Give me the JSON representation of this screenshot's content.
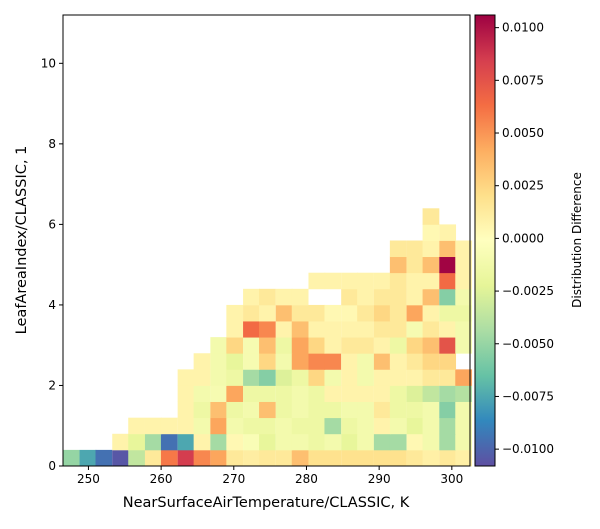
{
  "chart_data": {
    "type": "heatmap",
    "xlabel": "NearSurfaceAirTemperature/CLASSIC,  K",
    "ylabel": "LeafAreaIndex/CLASSIC,  1",
    "xlim": [
      246.5,
      302.5
    ],
    "ylim": [
      0,
      11.2
    ],
    "xticks": [
      250,
      260,
      270,
      280,
      290,
      300
    ],
    "yticks": [
      0,
      2,
      4,
      6,
      8,
      10
    ],
    "bin_width_x": 2.25,
    "bin_height_y": 0.4,
    "grid": false,
    "colorbar": {
      "label": "Distribution Difference",
      "range": [
        -0.0108,
        0.0106
      ],
      "ticks": [
        0.01,
        0.0075,
        0.005,
        0.0025,
        0.0,
        -0.0025,
        -0.005,
        -0.0075,
        -0.01
      ],
      "tick_labels": [
        "0.0100",
        "0.0075",
        "0.0050",
        "0.0025",
        "0.0000",
        "−0.0025",
        "−0.0050",
        "−0.0075",
        "−0.0100"
      ],
      "colormap": "Spectral_r",
      "position": "right"
    },
    "cells": [
      {
        "x": 247.6,
        "y": 0.2,
        "v": -0.005
      },
      {
        "x": 249.9,
        "y": 0.2,
        "v": -0.0075
      },
      {
        "x": 252.1,
        "y": 0.2,
        "v": -0.0095
      },
      {
        "x": 254.4,
        "y": 0.2,
        "v": -0.0105
      },
      {
        "x": 256.6,
        "y": 0.2,
        "v": -0.0035
      },
      {
        "x": 258.9,
        "y": 0.2,
        "v": 0.0015
      },
      {
        "x": 261.1,
        "y": 0.2,
        "v": 0.006
      },
      {
        "x": 263.4,
        "y": 0.2,
        "v": 0.0085
      },
      {
        "x": 265.6,
        "y": 0.2,
        "v": 0.0055
      },
      {
        "x": 267.9,
        "y": 0.2,
        "v": 0.0045
      },
      {
        "x": 270.1,
        "y": 0.2,
        "v": 0.0015
      },
      {
        "x": 272.4,
        "y": 0.2,
        "v": 0.0012
      },
      {
        "x": 274.6,
        "y": 0.2,
        "v": 0.0015
      },
      {
        "x": 276.9,
        "y": 0.2,
        "v": 0.0015
      },
      {
        "x": 279.1,
        "y": 0.2,
        "v": 0.0035
      },
      {
        "x": 281.4,
        "y": 0.2,
        "v": 0.002
      },
      {
        "x": 283.6,
        "y": 0.2,
        "v": 0.002
      },
      {
        "x": 285.9,
        "y": 0.2,
        "v": 0.002
      },
      {
        "x": 288.1,
        "y": 0.2,
        "v": 0.002
      },
      {
        "x": 290.4,
        "y": 0.2,
        "v": 0.002
      },
      {
        "x": 292.6,
        "y": 0.2,
        "v": 0.002
      },
      {
        "x": 294.9,
        "y": 0.2,
        "v": 0.0015
      },
      {
        "x": 297.1,
        "y": 0.2,
        "v": 0.001
      },
      {
        "x": 299.4,
        "y": 0.2,
        "v": 0.0015
      },
      {
        "x": 301.6,
        "y": 0.2,
        "v": 0.001
      },
      {
        "x": 254.4,
        "y": 0.6,
        "v": 0.0008
      },
      {
        "x": 256.6,
        "y": 0.6,
        "v": -0.002
      },
      {
        "x": 258.9,
        "y": 0.6,
        "v": -0.0045
      },
      {
        "x": 261.1,
        "y": 0.6,
        "v": -0.0095
      },
      {
        "x": 263.4,
        "y": 0.6,
        "v": -0.0075
      },
      {
        "x": 265.6,
        "y": 0.6,
        "v": 0.0008
      },
      {
        "x": 267.9,
        "y": 0.6,
        "v": -0.0045
      },
      {
        "x": 270.1,
        "y": 0.6,
        "v": 0.0005
      },
      {
        "x": 272.4,
        "y": 0.6,
        "v": -0.0005
      },
      {
        "x": 274.6,
        "y": 0.6,
        "v": -0.002
      },
      {
        "x": 276.9,
        "y": 0.6,
        "v": -0.001
      },
      {
        "x": 279.1,
        "y": 0.6,
        "v": -0.001
      },
      {
        "x": 281.4,
        "y": 0.6,
        "v": -0.0015
      },
      {
        "x": 283.6,
        "y": 0.6,
        "v": -0.001
      },
      {
        "x": 285.9,
        "y": 0.6,
        "v": -0.002
      },
      {
        "x": 288.1,
        "y": 0.6,
        "v": -0.001
      },
      {
        "x": 290.4,
        "y": 0.6,
        "v": -0.0045
      },
      {
        "x": 292.6,
        "y": 0.6,
        "v": -0.0045
      },
      {
        "x": 294.9,
        "y": 0.6,
        "v": 0.0005
      },
      {
        "x": 297.1,
        "y": 0.6,
        "v": -0.001
      },
      {
        "x": 299.4,
        "y": 0.6,
        "v": -0.0045
      },
      {
        "x": 301.6,
        "y": 0.6,
        "v": -0.001
      },
      {
        "x": 256.6,
        "y": 1.0,
        "v": 0.0008
      },
      {
        "x": 258.9,
        "y": 1.0,
        "v": 0.0008
      },
      {
        "x": 261.1,
        "y": 1.0,
        "v": 0.0008
      },
      {
        "x": 263.4,
        "y": 1.0,
        "v": 0.0008
      },
      {
        "x": 265.6,
        "y": 1.0,
        "v": -0.001
      },
      {
        "x": 267.9,
        "y": 1.0,
        "v": 0.0045
      },
      {
        "x": 270.1,
        "y": 1.0,
        "v": -0.001
      },
      {
        "x": 272.4,
        "y": 1.0,
        "v": -0.0015
      },
      {
        "x": 274.6,
        "y": 1.0,
        "v": -0.0015
      },
      {
        "x": 276.9,
        "y": 1.0,
        "v": -0.001
      },
      {
        "x": 279.1,
        "y": 1.0,
        "v": -0.0015
      },
      {
        "x": 281.4,
        "y": 1.0,
        "v": -0.0015
      },
      {
        "x": 283.6,
        "y": 1.0,
        "v": -0.0045
      },
      {
        "x": 285.9,
        "y": 1.0,
        "v": -0.0015
      },
      {
        "x": 288.1,
        "y": 1.0,
        "v": -0.001
      },
      {
        "x": 290.4,
        "y": 1.0,
        "v": 0.0008
      },
      {
        "x": 292.6,
        "y": 1.0,
        "v": -0.001
      },
      {
        "x": 294.9,
        "y": 1.0,
        "v": -0.002
      },
      {
        "x": 297.1,
        "y": 1.0,
        "v": -0.001
      },
      {
        "x": 299.4,
        "y": 1.0,
        "v": -0.0045
      },
      {
        "x": 301.6,
        "y": 1.0,
        "v": -0.001
      },
      {
        "x": 263.4,
        "y": 1.4,
        "v": 0.0008
      },
      {
        "x": 265.6,
        "y": 1.4,
        "v": -0.0015
      },
      {
        "x": 267.9,
        "y": 1.4,
        "v": 0.0035
      },
      {
        "x": 270.1,
        "y": 1.4,
        "v": -0.0015
      },
      {
        "x": 272.4,
        "y": 1.4,
        "v": -0.001
      },
      {
        "x": 274.6,
        "y": 1.4,
        "v": 0.0035
      },
      {
        "x": 276.9,
        "y": 1.4,
        "v": -0.0015
      },
      {
        "x": 279.1,
        "y": 1.4,
        "v": -0.001
      },
      {
        "x": 281.4,
        "y": 1.4,
        "v": -0.0015
      },
      {
        "x": 283.6,
        "y": 1.4,
        "v": -0.0015
      },
      {
        "x": 285.9,
        "y": 1.4,
        "v": -0.001
      },
      {
        "x": 288.1,
        "y": 1.4,
        "v": -0.001
      },
      {
        "x": 290.4,
        "y": 1.4,
        "v": 0.0015
      },
      {
        "x": 292.6,
        "y": 1.4,
        "v": -0.0015
      },
      {
        "x": 294.9,
        "y": 1.4,
        "v": -0.0015
      },
      {
        "x": 297.1,
        "y": 1.4,
        "v": -0.001
      },
      {
        "x": 299.4,
        "y": 1.4,
        "v": -0.0055
      },
      {
        "x": 301.6,
        "y": 1.4,
        "v": -0.001
      },
      {
        "x": 263.4,
        "y": 1.8,
        "v": 0.0008
      },
      {
        "x": 265.6,
        "y": 1.8,
        "v": -0.001
      },
      {
        "x": 267.9,
        "y": 1.8,
        "v": -0.0008
      },
      {
        "x": 270.1,
        "y": 1.8,
        "v": 0.0045
      },
      {
        "x": 272.4,
        "y": 1.8,
        "v": -0.0015
      },
      {
        "x": 274.6,
        "y": 1.8,
        "v": -0.0015
      },
      {
        "x": 276.9,
        "y": 1.8,
        "v": -0.0015
      },
      {
        "x": 279.1,
        "y": 1.8,
        "v": -0.001
      },
      {
        "x": 281.4,
        "y": 1.8,
        "v": -0.0015
      },
      {
        "x": 283.6,
        "y": 1.8,
        "v": 0.0008
      },
      {
        "x": 285.9,
        "y": 1.8,
        "v": 0.0008
      },
      {
        "x": 288.1,
        "y": 1.8,
        "v": 0.0008
      },
      {
        "x": 290.4,
        "y": 1.8,
        "v": 0.0008
      },
      {
        "x": 292.6,
        "y": 1.8,
        "v": -0.0015
      },
      {
        "x": 294.9,
        "y": 1.8,
        "v": -0.0025
      },
      {
        "x": 297.1,
        "y": 1.8,
        "v": -0.0035
      },
      {
        "x": 299.4,
        "y": 1.8,
        "v": -0.0045
      },
      {
        "x": 301.6,
        "y": 1.8,
        "v": -0.004
      },
      {
        "x": 263.4,
        "y": 2.2,
        "v": 0.0008
      },
      {
        "x": 265.6,
        "y": 2.2,
        "v": 0.0008
      },
      {
        "x": 267.9,
        "y": 2.2,
        "v": -0.001
      },
      {
        "x": 270.1,
        "y": 2.2,
        "v": -0.0015
      },
      {
        "x": 272.4,
        "y": 2.2,
        "v": -0.0045
      },
      {
        "x": 274.6,
        "y": 2.2,
        "v": -0.0055
      },
      {
        "x": 276.9,
        "y": 2.2,
        "v": -0.0025
      },
      {
        "x": 279.1,
        "y": 2.2,
        "v": -0.0015
      },
      {
        "x": 281.4,
        "y": 2.2,
        "v": 0.0025
      },
      {
        "x": 283.6,
        "y": 2.2,
        "v": -0.001
      },
      {
        "x": 285.9,
        "y": 2.2,
        "v": 0.0008
      },
      {
        "x": 288.1,
        "y": 2.2,
        "v": -0.001
      },
      {
        "x": 290.4,
        "y": 2.2,
        "v": 0.0008
      },
      {
        "x": 292.6,
        "y": 2.2,
        "v": 0.0008
      },
      {
        "x": 294.9,
        "y": 2.2,
        "v": 0.0008
      },
      {
        "x": 297.1,
        "y": 2.2,
        "v": 0.0015
      },
      {
        "x": 299.4,
        "y": 2.2,
        "v": 0.0015
      },
      {
        "x": 301.6,
        "y": 2.2,
        "v": 0.0045
      },
      {
        "x": 265.6,
        "y": 2.6,
        "v": 0.0008
      },
      {
        "x": 267.9,
        "y": 2.6,
        "v": -0.001
      },
      {
        "x": 270.1,
        "y": 2.6,
        "v": -0.002
      },
      {
        "x": 272.4,
        "y": 2.6,
        "v": -0.0008
      },
      {
        "x": 274.6,
        "y": 2.6,
        "v": 0.0025
      },
      {
        "x": 276.9,
        "y": 2.6,
        "v": -0.001
      },
      {
        "x": 279.1,
        "y": 2.6,
        "v": 0.0045
      },
      {
        "x": 281.4,
        "y": 2.6,
        "v": 0.0055
      },
      {
        "x": 283.6,
        "y": 2.6,
        "v": 0.0055
      },
      {
        "x": 285.9,
        "y": 2.6,
        "v": 0.0008
      },
      {
        "x": 288.1,
        "y": 2.6,
        "v": -0.001
      },
      {
        "x": 290.4,
        "y": 2.6,
        "v": 0.0035
      },
      {
        "x": 292.6,
        "y": 2.6,
        "v": 0.0008
      },
      {
        "x": 294.9,
        "y": 2.6,
        "v": 0.0015
      },
      {
        "x": 297.1,
        "y": 2.6,
        "v": 0.0025
      },
      {
        "x": 299.4,
        "y": 2.6,
        "v": 0.0025
      },
      {
        "x": 267.9,
        "y": 3.0,
        "v": -0.001
      },
      {
        "x": 270.1,
        "y": 3.0,
        "v": 0.0025
      },
      {
        "x": 272.4,
        "y": 3.0,
        "v": -0.0008
      },
      {
        "x": 274.6,
        "y": 3.0,
        "v": 0.0035
      },
      {
        "x": 276.9,
        "y": 3.0,
        "v": -0.0015
      },
      {
        "x": 279.1,
        "y": 3.0,
        "v": 0.0045
      },
      {
        "x": 281.4,
        "y": 3.0,
        "v": 0.0025
      },
      {
        "x": 283.6,
        "y": 3.0,
        "v": 0.0008
      },
      {
        "x": 285.9,
        "y": 3.0,
        "v": 0.0015
      },
      {
        "x": 288.1,
        "y": 3.0,
        "v": 0.0015
      },
      {
        "x": 290.4,
        "y": 3.0,
        "v": 0.0008
      },
      {
        "x": 292.6,
        "y": 3.0,
        "v": -0.0015
      },
      {
        "x": 294.9,
        "y": 3.0,
        "v": 0.0025
      },
      {
        "x": 297.1,
        "y": 3.0,
        "v": 0.0035
      },
      {
        "x": 299.4,
        "y": 3.0,
        "v": 0.0075
      },
      {
        "x": 301.6,
        "y": 3.0,
        "v": -0.001
      },
      {
        "x": 270.1,
        "y": 3.4,
        "v": 0.0008
      },
      {
        "x": 272.4,
        "y": 3.4,
        "v": 0.0065
      },
      {
        "x": 274.6,
        "y": 3.4,
        "v": 0.0055
      },
      {
        "x": 276.9,
        "y": 3.4,
        "v": 0.0008
      },
      {
        "x": 279.1,
        "y": 3.4,
        "v": 0.0035
      },
      {
        "x": 281.4,
        "y": 3.4,
        "v": 0.0008
      },
      {
        "x": 283.6,
        "y": 3.4,
        "v": 0.0008
      },
      {
        "x": 285.9,
        "y": 3.4,
        "v": 0.0008
      },
      {
        "x": 288.1,
        "y": 3.4,
        "v": 0.0008
      },
      {
        "x": 290.4,
        "y": 3.4,
        "v": 0.0015
      },
      {
        "x": 292.6,
        "y": 3.4,
        "v": 0.0015
      },
      {
        "x": 294.9,
        "y": 3.4,
        "v": -0.0008
      },
      {
        "x": 297.1,
        "y": 3.4,
        "v": 0.0015
      },
      {
        "x": 299.4,
        "y": 3.4,
        "v": 0.0008
      },
      {
        "x": 301.6,
        "y": 3.4,
        "v": -0.001
      },
      {
        "x": 270.1,
        "y": 3.8,
        "v": 0.0008
      },
      {
        "x": 272.4,
        "y": 3.8,
        "v": 0.0015
      },
      {
        "x": 274.6,
        "y": 3.8,
        "v": 0.0008
      },
      {
        "x": 276.9,
        "y": 3.8,
        "v": 0.0035
      },
      {
        "x": 279.1,
        "y": 3.8,
        "v": 0.0015
      },
      {
        "x": 281.4,
        "y": 3.8,
        "v": 0.0015
      },
      {
        "x": 283.6,
        "y": 3.8,
        "v": 0.0005
      },
      {
        "x": 285.9,
        "y": 3.8,
        "v": 0.0005
      },
      {
        "x": 288.1,
        "y": 3.8,
        "v": 0.0015
      },
      {
        "x": 290.4,
        "y": 3.8,
        "v": 0.0025
      },
      {
        "x": 292.6,
        "y": 3.8,
        "v": 0.0015
      },
      {
        "x": 294.9,
        "y": 3.8,
        "v": 0.0045
      },
      {
        "x": 297.1,
        "y": 3.8,
        "v": 0.0008
      },
      {
        "x": 299.4,
        "y": 3.8,
        "v": -0.0015
      },
      {
        "x": 301.6,
        "y": 3.8,
        "v": -0.0015
      },
      {
        "x": 272.4,
        "y": 4.2,
        "v": 0.0008
      },
      {
        "x": 274.6,
        "y": 4.2,
        "v": 0.0015
      },
      {
        "x": 276.9,
        "y": 4.2,
        "v": 0.0008
      },
      {
        "x": 279.1,
        "y": 4.2,
        "v": 0.0008
      },
      {
        "x": 285.9,
        "y": 4.2,
        "v": 0.0015
      },
      {
        "x": 288.1,
        "y": 4.2,
        "v": 0.0008
      },
      {
        "x": 290.4,
        "y": 4.2,
        "v": 0.0015
      },
      {
        "x": 292.6,
        "y": 4.2,
        "v": 0.0015
      },
      {
        "x": 294.9,
        "y": 4.2,
        "v": 0.0008
      },
      {
        "x": 297.1,
        "y": 4.2,
        "v": 0.0035
      },
      {
        "x": 299.4,
        "y": 4.2,
        "v": -0.0055
      },
      {
        "x": 301.6,
        "y": 4.2,
        "v": -0.001
      },
      {
        "x": 281.4,
        "y": 4.6,
        "v": 0.0008
      },
      {
        "x": 283.6,
        "y": 4.6,
        "v": 0.0008
      },
      {
        "x": 285.9,
        "y": 4.6,
        "v": 0.0008
      },
      {
        "x": 288.1,
        "y": 4.6,
        "v": 0.0008
      },
      {
        "x": 290.4,
        "y": 4.6,
        "v": 0.0008
      },
      {
        "x": 292.6,
        "y": 4.6,
        "v": 0.0015
      },
      {
        "x": 294.9,
        "y": 4.6,
        "v": 0.0008
      },
      {
        "x": 297.1,
        "y": 4.6,
        "v": 0.0008
      },
      {
        "x": 299.4,
        "y": 4.6,
        "v": 0.0065
      },
      {
        "x": 301.6,
        "y": 4.6,
        "v": 0.0008
      },
      {
        "x": 292.6,
        "y": 5.0,
        "v": 0.0035
      },
      {
        "x": 294.9,
        "y": 5.0,
        "v": 0.0015
      },
      {
        "x": 297.1,
        "y": 5.0,
        "v": 0.0035
      },
      {
        "x": 299.4,
        "y": 5.0,
        "v": 0.0105
      },
      {
        "x": 301.6,
        "y": 5.0,
        "v": 0.0008
      },
      {
        "x": 292.6,
        "y": 5.4,
        "v": 0.0015
      },
      {
        "x": 294.9,
        "y": 5.4,
        "v": 0.0015
      },
      {
        "x": 297.1,
        "y": 5.4,
        "v": 0.0008
      },
      {
        "x": 299.4,
        "y": 5.4,
        "v": 0.0035
      },
      {
        "x": 301.6,
        "y": 5.4,
        "v": 0.0008
      },
      {
        "x": 297.1,
        "y": 5.8,
        "v": 0.0005
      },
      {
        "x": 299.4,
        "y": 5.8,
        "v": 0.0008
      },
      {
        "x": 297.1,
        "y": 6.2,
        "v": 0.0015
      }
    ]
  }
}
